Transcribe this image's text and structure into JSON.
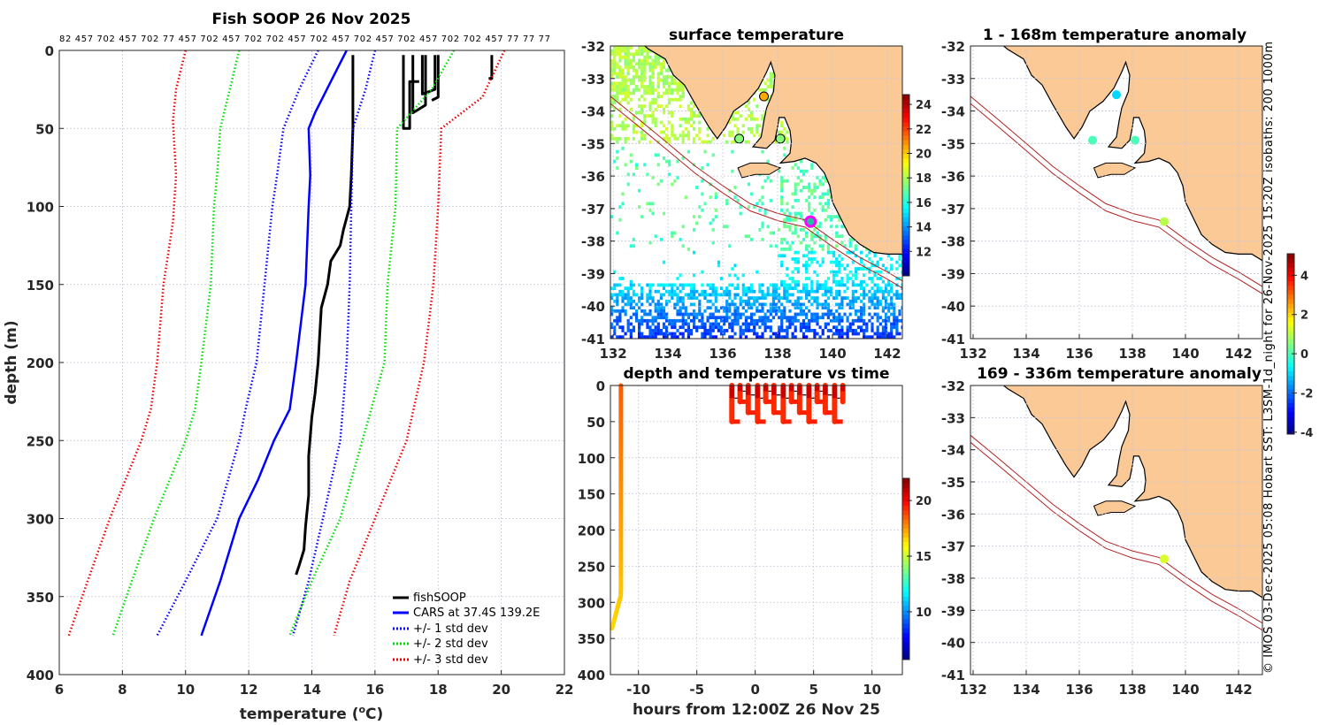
{
  "figure_title": "Fish SOOP 26 Nov 2025",
  "cast_depths_label": "82 457 702 457 702 77 457 702 457 702 702 457 702 457 702 457 702 457 702 702 457 77 77 77",
  "credit": "© IMOS 03-Dec-2025 05:08 Hobart SST: L3SM-1d_night for 26-Nov-2025 15:20Z isobaths: 200  1000m",
  "colors": {
    "land": "#fbc995",
    "grid": "#c8c8dc",
    "isobath": "#b22222",
    "fishsoop": "#000000",
    "cars": "#0000ff",
    "std1": "#0000ff",
    "std2": "#00dd00",
    "std3": "#ee0000",
    "ship": "#ff00ff"
  },
  "chart_data": [
    {
      "id": "profile",
      "type": "line",
      "title": "Fish SOOP 26 Nov 2025",
      "xlabel_parts": [
        "temperature (",
        "o",
        "C)"
      ],
      "ylabel": "depth (m)",
      "xlim": [
        6,
        22
      ],
      "ylim": [
        0,
        400
      ],
      "xticks": [
        6,
        8,
        10,
        12,
        14,
        16,
        18,
        20,
        22
      ],
      "yticks": [
        0,
        50,
        100,
        150,
        200,
        250,
        300,
        350,
        400
      ],
      "grid": true,
      "legend_position": "bottom-right",
      "legend": [
        "fishSOOP",
        "CARS at 37.4S 139.2E",
        "+/- 1 std dev",
        "+/- 2 std dev",
        "+/- 3 std dev"
      ],
      "series": [
        {
          "name": "fishSOOP",
          "style": "solid",
          "color": "#000000",
          "points": [
            [
              15.3,
              3
            ],
            [
              15.3,
              50
            ],
            [
              15.25,
              80
            ],
            [
              15.2,
              100
            ],
            [
              15.0,
              115
            ],
            [
              14.9,
              125
            ],
            [
              14.6,
              135
            ],
            [
              14.5,
              150
            ],
            [
              14.3,
              165
            ],
            [
              14.2,
              200
            ],
            [
              14.1,
              220
            ],
            [
              14.0,
              235
            ],
            [
              13.9,
              260
            ],
            [
              13.9,
              285
            ],
            [
              13.8,
              305
            ],
            [
              13.75,
              320
            ],
            [
              13.6,
              330
            ],
            [
              13.5,
              336
            ]
          ]
        },
        {
          "name": "fishSOOP-casts",
          "style": "solid",
          "color": "#000000",
          "casts": [
            [
              [
                16.9,
                3
              ],
              [
                16.9,
                50
              ],
              [
                17.1,
                50
              ],
              [
                17.1,
                20
              ],
              [
                17.4,
                20
              ]
            ],
            [
              [
                17.2,
                3
              ],
              [
                17.2,
                40
              ],
              [
                17.6,
                35
              ],
              [
                17.6,
                3
              ]
            ],
            [
              [
                17.5,
                3
              ],
              [
                17.5,
                28
              ],
              [
                17.9,
                25
              ],
              [
                17.9,
                3
              ]
            ],
            [
              [
                18.0,
                3
              ],
              [
                18.0,
                30
              ],
              [
                17.8,
                32
              ]
            ],
            [
              [
                19.7,
                3
              ],
              [
                19.7,
                18
              ],
              [
                19.6,
                18
              ]
            ]
          ]
        },
        {
          "name": "CARS mean",
          "style": "solid",
          "color": "#0000ff",
          "points": [
            [
              15.1,
              0
            ],
            [
              14.6,
              20
            ],
            [
              14.1,
              40
            ],
            [
              13.9,
              50
            ],
            [
              13.95,
              80
            ],
            [
              13.9,
              100
            ],
            [
              13.8,
              150
            ],
            [
              13.5,
              200
            ],
            [
              13.3,
              230
            ],
            [
              12.8,
              250
            ],
            [
              12.3,
              275
            ],
            [
              11.7,
              300
            ],
            [
              11.1,
              340
            ],
            [
              10.5,
              375
            ]
          ]
        },
        {
          "name": "-1 std",
          "style": "dotted",
          "color": "#0000ff",
          "points": [
            [
              14.2,
              0
            ],
            [
              13.6,
              25
            ],
            [
              13.1,
              50
            ],
            [
              12.9,
              80
            ],
            [
              12.75,
              100
            ],
            [
              12.5,
              150
            ],
            [
              12.25,
              200
            ],
            [
              11.9,
              230
            ],
            [
              11.7,
              250
            ],
            [
              11.0,
              300
            ],
            [
              10.0,
              340
            ],
            [
              9.1,
              375
            ]
          ]
        },
        {
          "name": "+1 std",
          "style": "dotted",
          "color": "#0000ff",
          "points": [
            [
              16.0,
              0
            ],
            [
              15.7,
              25
            ],
            [
              15.3,
              50
            ],
            [
              15.25,
              100
            ],
            [
              15.2,
              150
            ],
            [
              15.1,
              200
            ],
            [
              14.9,
              250
            ],
            [
              14.35,
              300
            ],
            [
              13.9,
              340
            ],
            [
              13.4,
              375
            ]
          ]
        },
        {
          "name": "-2 std",
          "style": "dotted",
          "color": "#00dd00",
          "points": [
            [
              11.7,
              0
            ],
            [
              11.4,
              25
            ],
            [
              11.1,
              50
            ],
            [
              11.0,
              80
            ],
            [
              10.9,
              100
            ],
            [
              10.8,
              150
            ],
            [
              10.5,
              200
            ],
            [
              10.3,
              230
            ],
            [
              10.0,
              250
            ],
            [
              9.0,
              300
            ],
            [
              8.3,
              340
            ],
            [
              7.7,
              375
            ]
          ]
        },
        {
          "name": "+2 std",
          "style": "dotted",
          "color": "#00dd00",
          "points": [
            [
              18.5,
              0
            ],
            [
              17.8,
              25
            ],
            [
              16.7,
              50
            ],
            [
              16.65,
              100
            ],
            [
              16.4,
              150
            ],
            [
              16.3,
              200
            ],
            [
              15.6,
              250
            ],
            [
              14.9,
              300
            ],
            [
              14.0,
              340
            ],
            [
              13.3,
              375
            ]
          ]
        },
        {
          "name": "-3 std",
          "style": "dotted",
          "color": "#ee0000",
          "points": [
            [
              10.0,
              0
            ],
            [
              9.7,
              25
            ],
            [
              9.6,
              45
            ],
            [
              9.7,
              80
            ],
            [
              9.6,
              110
            ],
            [
              9.3,
              150
            ],
            [
              9.1,
              200
            ],
            [
              8.9,
              230
            ],
            [
              8.6,
              250
            ],
            [
              7.6,
              300
            ],
            [
              6.9,
              340
            ],
            [
              6.3,
              375
            ]
          ]
        },
        {
          "name": "+3 std",
          "style": "dotted",
          "color": "#ee0000",
          "points": [
            [
              20.1,
              0
            ],
            [
              19.4,
              30
            ],
            [
              18.1,
              50
            ],
            [
              18.0,
              100
            ],
            [
              17.85,
              150
            ],
            [
              17.55,
              200
            ],
            [
              17.0,
              250
            ],
            [
              16.0,
              300
            ],
            [
              15.2,
              340
            ],
            [
              14.7,
              375
            ]
          ]
        }
      ]
    },
    {
      "id": "sst_map",
      "type": "heatmap",
      "title": "surface temperature",
      "xlim": [
        131.9,
        142.55
      ],
      "ylim": [
        -32,
        -41
      ],
      "xticks": [
        132,
        134,
        136,
        138,
        140,
        142
      ],
      "yticks": [
        -32,
        -33,
        -34,
        -35,
        -36,
        -37,
        -38,
        -39,
        -40,
        -41
      ],
      "colorbar": {
        "range": [
          10,
          24.8
        ],
        "ticks": [
          12,
          14,
          16,
          18,
          20,
          22,
          24
        ]
      },
      "markers": [
        {
          "lon": 137.5,
          "lat": -33.55,
          "value": 20.5
        },
        {
          "lon": 136.6,
          "lat": -34.85,
          "value": 17.5
        },
        {
          "lon": 138.1,
          "lat": -34.85,
          "value": 17.5
        }
      ],
      "ship_position": {
        "lon": 139.2,
        "lat": -37.4
      }
    },
    {
      "id": "depth_time",
      "type": "scatter",
      "title": "depth and temperature vs time",
      "xlabel": "hours from 12:00Z 26 Nov 25",
      "xlim": [
        -12.4,
        12.6
      ],
      "ylim": [
        0,
        400
      ],
      "xticks": [
        -10,
        -5,
        0,
        5,
        10
      ],
      "yticks": [
        0,
        50,
        100,
        150,
        200,
        250,
        300,
        350,
        400
      ],
      "colorbar": {
        "range": [
          5.7,
          22
        ],
        "ticks": [
          10,
          15,
          20
        ]
      },
      "long_cast": {
        "hours": -11.5,
        "max_depth": 336,
        "temp_top": 18.5,
        "temp_bottom": 16.5
      },
      "short_casts_hours": [
        -2.0,
        -1.3,
        -0.6,
        0.2,
        0.9,
        1.6,
        2.4,
        3.1,
        3.8,
        4.6,
        5.3,
        6.0,
        6.8,
        7.5
      ],
      "short_casts_depth": 50
    },
    {
      "id": "anomaly_shallow",
      "type": "heatmap",
      "title": "1 - 168m temperature anomaly",
      "xlim": [
        131.9,
        142.9
      ],
      "ylim": [
        -32,
        -41
      ],
      "xticks": [
        132,
        134,
        136,
        138,
        140,
        142
      ],
      "yticks": [
        -32,
        -33,
        -34,
        -35,
        -36,
        -37,
        -38,
        -39,
        -40,
        -41
      ],
      "markers": [
        {
          "lon": 137.4,
          "lat": -33.5,
          "value": -1
        },
        {
          "lon": 136.5,
          "lat": -34.9,
          "value": 0
        },
        {
          "lon": 138.1,
          "lat": -34.9,
          "value": 0
        },
        {
          "lon": 139.2,
          "lat": -37.4,
          "value": 1
        }
      ]
    },
    {
      "id": "anomaly_deep",
      "type": "heatmap",
      "title": "169 - 336m temperature anomaly",
      "xlim": [
        131.9,
        142.9
      ],
      "ylim": [
        -32,
        -41
      ],
      "xticks": [
        132,
        134,
        136,
        138,
        140,
        142
      ],
      "yticks": [
        -32,
        -33,
        -34,
        -35,
        -36,
        -37,
        -38,
        -39,
        -40,
        -41
      ],
      "colorbar": {
        "range": [
          -4.1,
          5.1
        ],
        "ticks": [
          -4,
          -2,
          0,
          2,
          4
        ]
      },
      "markers": [
        {
          "lon": 139.2,
          "lat": -37.4,
          "value": 1.3
        }
      ]
    }
  ]
}
